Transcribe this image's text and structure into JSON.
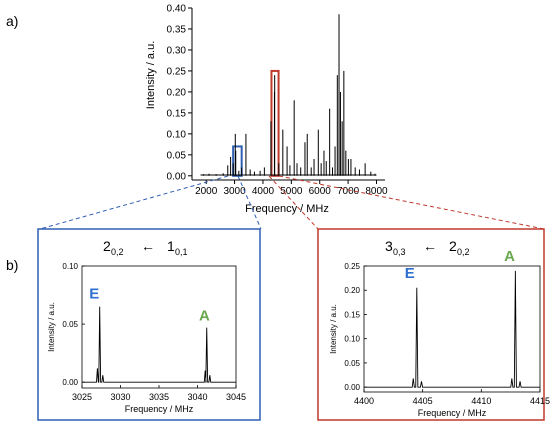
{
  "figure": {
    "panel_a_label": "a)",
    "panel_b_label": "b)"
  },
  "colors": {
    "axis": "#000000",
    "blue_box": "#2f5fb3",
    "red_box": "#c0392b",
    "E_label": "#2e6fd1",
    "A_label": "#6aa84f"
  },
  "chart_data": [
    {
      "type": "bar",
      "panel": "a",
      "xlabel": "Frequency / MHz",
      "ylabel": "Intensity / a.u.",
      "xlim": [
        1500,
        8300
      ],
      "ylim": [
        -0.01,
        0.4
      ],
      "xticks": [
        2000,
        3000,
        4000,
        5000,
        6000,
        7000,
        8000
      ],
      "yticks": [
        0.0,
        0.05,
        0.1,
        0.15,
        0.2,
        0.25,
        0.3,
        0.35,
        0.4
      ],
      "ytick_labels": [
        "0.00",
        "0.05",
        "0.10",
        "0.15",
        "0.20",
        "0.25",
        "0.30",
        "0.35",
        "0.40"
      ],
      "lines": [
        {
          "x": 1900,
          "y": 0.004
        },
        {
          "x": 2100,
          "y": 0.005
        },
        {
          "x": 2350,
          "y": 0.004
        },
        {
          "x": 2600,
          "y": 0.006
        },
        {
          "x": 2760,
          "y": 0.025
        },
        {
          "x": 2860,
          "y": 0.045
        },
        {
          "x": 2950,
          "y": 0.03
        },
        {
          "x": 3025,
          "y": 0.1
        },
        {
          "x": 3041,
          "y": 0.06
        },
        {
          "x": 3150,
          "y": 0.012
        },
        {
          "x": 3250,
          "y": 0.02
        },
        {
          "x": 3400,
          "y": 0.1
        },
        {
          "x": 3550,
          "y": 0.015
        },
        {
          "x": 3700,
          "y": 0.01
        },
        {
          "x": 3900,
          "y": 0.012
        },
        {
          "x": 4050,
          "y": 0.02
        },
        {
          "x": 4280,
          "y": 0.13
        },
        {
          "x": 4405,
          "y": 0.2
        },
        {
          "x": 4413,
          "y": 0.24
        },
        {
          "x": 4560,
          "y": 0.03
        },
        {
          "x": 4700,
          "y": 0.11
        },
        {
          "x": 4850,
          "y": 0.07
        },
        {
          "x": 4950,
          "y": 0.025
        },
        {
          "x": 5100,
          "y": 0.18
        },
        {
          "x": 5200,
          "y": 0.03
        },
        {
          "x": 5330,
          "y": 0.02
        },
        {
          "x": 5480,
          "y": 0.08
        },
        {
          "x": 5560,
          "y": 0.1
        },
        {
          "x": 5700,
          "y": 0.02
        },
        {
          "x": 5800,
          "y": 0.04
        },
        {
          "x": 5950,
          "y": 0.11
        },
        {
          "x": 6050,
          "y": 0.03
        },
        {
          "x": 6150,
          "y": 0.06
        },
        {
          "x": 6230,
          "y": 0.035
        },
        {
          "x": 6350,
          "y": 0.16
        },
        {
          "x": 6450,
          "y": 0.02
        },
        {
          "x": 6540,
          "y": 0.07
        },
        {
          "x": 6620,
          "y": 0.24
        },
        {
          "x": 6680,
          "y": 0.385
        },
        {
          "x": 6730,
          "y": 0.2
        },
        {
          "x": 6790,
          "y": 0.13
        },
        {
          "x": 6850,
          "y": 0.25
        },
        {
          "x": 6920,
          "y": 0.06
        },
        {
          "x": 7010,
          "y": 0.04
        },
        {
          "x": 7100,
          "y": 0.04
        },
        {
          "x": 7250,
          "y": 0.02
        },
        {
          "x": 7400,
          "y": 0.015
        },
        {
          "x": 7600,
          "y": 0.03
        },
        {
          "x": 7800,
          "y": 0.01
        },
        {
          "x": 7950,
          "y": 0.005
        }
      ],
      "highlight_boxes": [
        {
          "name": "blue",
          "x": [
            2950,
            3250
          ],
          "y": [
            0.0,
            0.07
          ]
        },
        {
          "name": "red",
          "x": [
            4300,
            4550
          ],
          "y": [
            0.0,
            0.25
          ]
        }
      ]
    },
    {
      "type": "line",
      "panel": "b-left",
      "title_upper": "2",
      "title_upper_sub": "0,2",
      "title_lower": "1",
      "title_lower_sub": "0,1",
      "arrow": "←",
      "xlabel": "Frequency / MHz",
      "ylabel": "Intensity / a.u.",
      "xlim": [
        3025,
        3045
      ],
      "ylim": [
        -0.005,
        0.1
      ],
      "xticks": [
        3025,
        3030,
        3035,
        3040,
        3045
      ],
      "yticks": [
        0.0,
        0.05,
        0.1
      ],
      "ytick_labels": [
        "0.00",
        "0.05",
        "0.10"
      ],
      "peaks": [
        {
          "x": 3027.0,
          "y": 0.012
        },
        {
          "x": 3027.3,
          "y": 0.065
        },
        {
          "x": 3027.7,
          "y": 0.006
        },
        {
          "x": 3041.0,
          "y": 0.01
        },
        {
          "x": 3041.2,
          "y": 0.047
        },
        {
          "x": 3041.6,
          "y": 0.006
        }
      ],
      "labels": [
        {
          "text": "E",
          "x": 3026.6,
          "y": 0.072,
          "color": "E_label"
        },
        {
          "text": "A",
          "x": 3040.9,
          "y": 0.053,
          "color": "A_label"
        }
      ]
    },
    {
      "type": "line",
      "panel": "b-right",
      "title_upper": "3",
      "title_upper_sub": "0,3",
      "title_lower": "2",
      "title_lower_sub": "0,2",
      "arrow": "←",
      "xlabel": "Frequency / MHz",
      "ylabel": "Intensity / a.u.",
      "xlim": [
        4400,
        4415
      ],
      "ylim": [
        -0.01,
        0.25
      ],
      "xticks": [
        4400,
        4405,
        4410,
        4415
      ],
      "yticks": [
        0.0,
        0.05,
        0.1,
        0.15,
        0.2,
        0.25
      ],
      "ytick_labels": [
        "0.00",
        "0.05",
        "0.10",
        "0.15",
        "0.20",
        "0.25"
      ],
      "peaks": [
        {
          "x": 4404.2,
          "y": 0.018
        },
        {
          "x": 4404.5,
          "y": 0.205
        },
        {
          "x": 4404.9,
          "y": 0.012
        },
        {
          "x": 4412.6,
          "y": 0.018
        },
        {
          "x": 4412.9,
          "y": 0.24
        },
        {
          "x": 4413.3,
          "y": 0.012
        }
      ],
      "labels": [
        {
          "text": "E",
          "x": 4403.9,
          "y": 0.225,
          "color": "E_label"
        },
        {
          "text": "A",
          "x": 4412.4,
          "y": 0.26,
          "color": "A_label"
        }
      ]
    }
  ]
}
